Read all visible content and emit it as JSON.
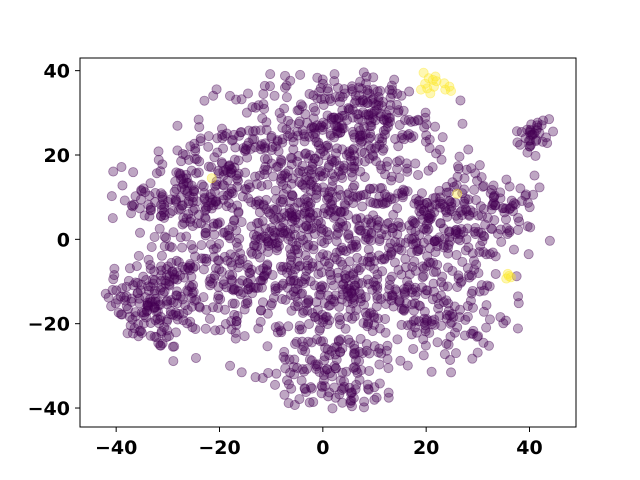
{
  "chart_data": {
    "type": "scatter",
    "title": "",
    "xlabel": "",
    "ylabel": "",
    "xlim": [
      -47,
      49
    ],
    "ylim": [
      -44.5,
      43
    ],
    "x_ticks": [
      -40,
      -20,
      0,
      20,
      40
    ],
    "y_ticks": [
      -40,
      -20,
      0,
      20,
      40
    ],
    "x_tick_labels": [
      "−40",
      "−20",
      "0",
      "20",
      "40"
    ],
    "y_tick_labels": [
      "−40",
      "−20",
      "0",
      "20",
      "40"
    ],
    "grid": false,
    "colors": {
      "majority": "#440154",
      "minority": "#fde725"
    },
    "marker_alpha": 0.35,
    "seed": 12345,
    "series": [
      {
        "label_value": 0,
        "color": "#440154",
        "clusters": [
          {
            "cx": -33,
            "cy": -15,
            "sx": 5.5,
            "sy": 6,
            "n": 160
          },
          {
            "cx": -27,
            "cy": 10,
            "sx": 5.5,
            "sy": 6,
            "n": 160
          },
          {
            "cx": -15,
            "cy": 18,
            "sx": 6,
            "sy": 6,
            "n": 90
          },
          {
            "cx": -18,
            "cy": -8,
            "sx": 7,
            "sy": 8,
            "n": 180
          },
          {
            "cx": -5,
            "cy": 5,
            "sx": 6,
            "sy": 7,
            "n": 190
          },
          {
            "cx": 0,
            "cy": 25,
            "sx": 9,
            "sy": 8,
            "n": 260
          },
          {
            "cx": 3,
            "cy": -32,
            "sx": 6,
            "sy": 5,
            "n": 120
          },
          {
            "cx": 0,
            "cy": -12,
            "sx": 9,
            "sy": 8,
            "n": 250
          },
          {
            "cx": 15,
            "cy": 5,
            "sx": 8,
            "sy": 9,
            "n": 210
          },
          {
            "cx": 20,
            "cy": -15,
            "sx": 7,
            "sy": 7,
            "n": 180
          },
          {
            "cx": 30,
            "cy": 5,
            "sx": 6,
            "sy": 7,
            "n": 160
          },
          {
            "cx": 41,
            "cy": 25,
            "sx": 1.8,
            "sy": 1.8,
            "n": 35
          },
          {
            "cx": 10,
            "cy": 30,
            "sx": 6,
            "sy": 5,
            "n": 100
          }
        ]
      },
      {
        "label_value": 1,
        "color": "#fde725",
        "points": [
          [
            19.5,
            39.5
          ],
          [
            20.5,
            38.2
          ],
          [
            21.3,
            37.8
          ],
          [
            22.0,
            37.5
          ],
          [
            19.8,
            36.9
          ],
          [
            21.5,
            36.2
          ],
          [
            20.2,
            35.8
          ],
          [
            19.0,
            35.5
          ],
          [
            20.8,
            34.6
          ],
          [
            24.5,
            36.2
          ],
          [
            23.7,
            35.5
          ],
          [
            24.8,
            35.2
          ],
          [
            23.5,
            37.0
          ],
          [
            21.8,
            38.6
          ],
          [
            35.8,
            -8.2
          ],
          [
            36.4,
            -9.0
          ],
          [
            35.5,
            -9.3
          ],
          [
            36.0,
            -8.7
          ],
          [
            -21.5,
            14.5
          ],
          [
            26.0,
            10.8
          ]
        ]
      }
    ]
  }
}
